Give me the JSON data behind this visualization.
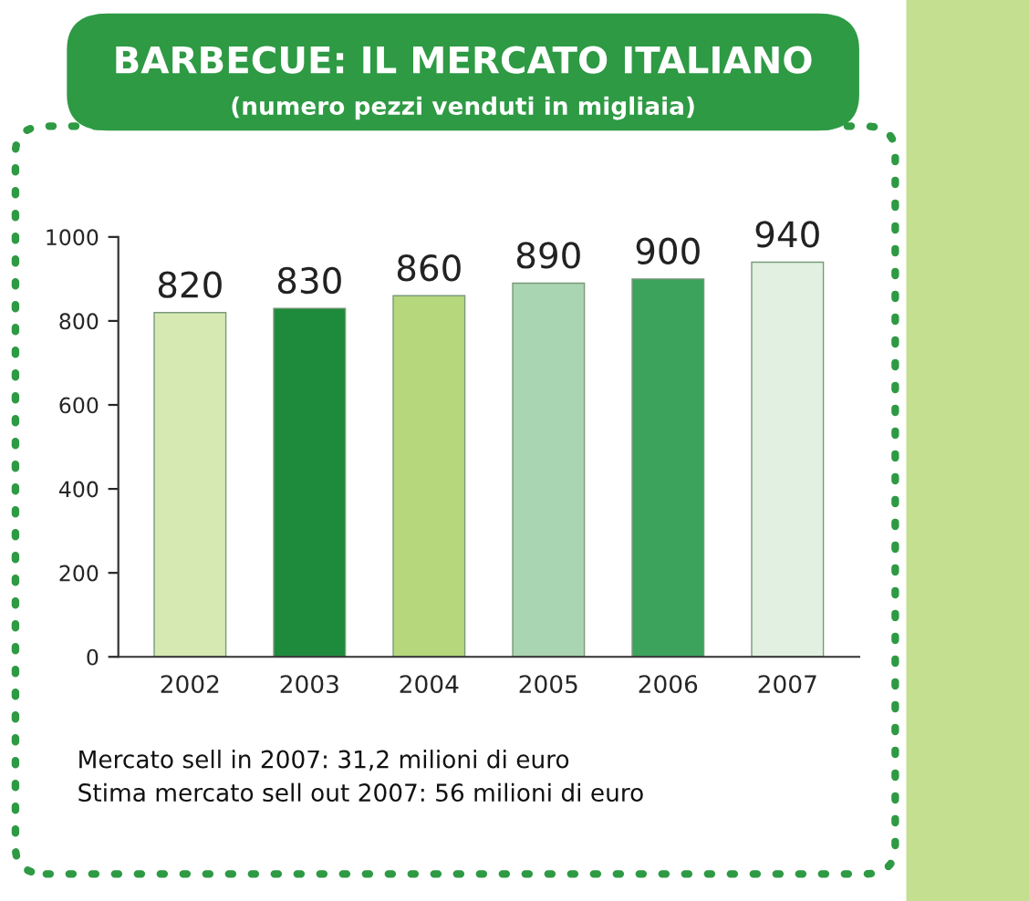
{
  "chart_data": {
    "type": "bar",
    "title": "BARBECUE: IL MERCATO ITALIANO",
    "subtitle": "(numero pezzi venduti in migliaia)",
    "categories": [
      "2002",
      "2003",
      "2004",
      "2005",
      "2006",
      "2007"
    ],
    "values": [
      820,
      830,
      860,
      890,
      900,
      940
    ],
    "colors": [
      "#d6e9b2",
      "#1e8b3c",
      "#b6d77c",
      "#a9d5b2",
      "#3ba35c",
      "#e1f0e1"
    ],
    "ylim": [
      0,
      1000
    ],
    "yticks": [
      0,
      200,
      400,
      600,
      800,
      1000
    ],
    "grid": false,
    "data_labels": true,
    "annotations": [
      "Mercato sell in 2007: 31,2 milioni di euro",
      "Stima mercato sell out 2007: 56 milioni di euro"
    ]
  }
}
